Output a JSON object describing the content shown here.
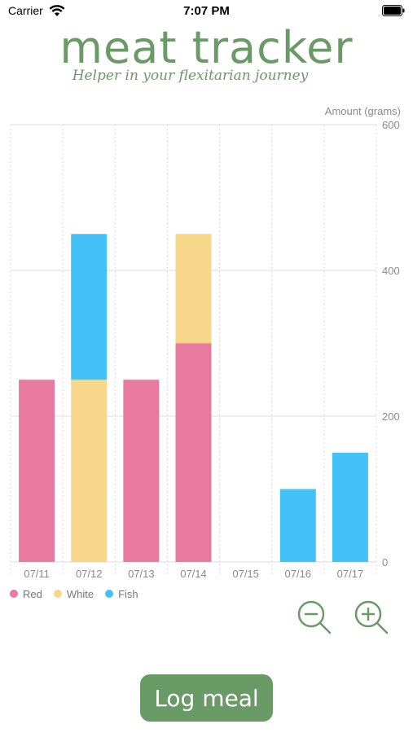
{
  "status_bar": {
    "carrier": "Carrier",
    "time": "7:07 PM",
    "wifi_icon": "wifi-icon",
    "battery_icon": "battery-full-icon"
  },
  "app": {
    "title": "meat tracker",
    "subtitle": "Helper in your flexitarian journey",
    "accent_color": "#6a9a66"
  },
  "chart_data": {
    "type": "bar",
    "stacked": true,
    "ylabel": "Amount (grams)",
    "ylim": [
      0,
      600
    ],
    "yticks": [
      0,
      200,
      400,
      600
    ],
    "grid": true,
    "legend_position": "bottom-left",
    "categories": [
      "07/11",
      "07/12",
      "07/13",
      "07/14",
      "07/15",
      "07/16",
      "07/17"
    ],
    "series": [
      {
        "name": "Red",
        "color": "#e8799f",
        "values": [
          250,
          0,
          250,
          300,
          0,
          0,
          0
        ]
      },
      {
        "name": "White",
        "color": "#f7d789",
        "values": [
          0,
          250,
          0,
          150,
          0,
          0,
          0
        ]
      },
      {
        "name": "Fish",
        "color": "#43c2f7",
        "values": [
          0,
          200,
          0,
          0,
          0,
          100,
          150
        ]
      }
    ]
  },
  "controls": {
    "zoom_out_icon": "zoom-out-icon",
    "zoom_in_icon": "zoom-in-icon",
    "log_meal_label": "Log meal"
  }
}
